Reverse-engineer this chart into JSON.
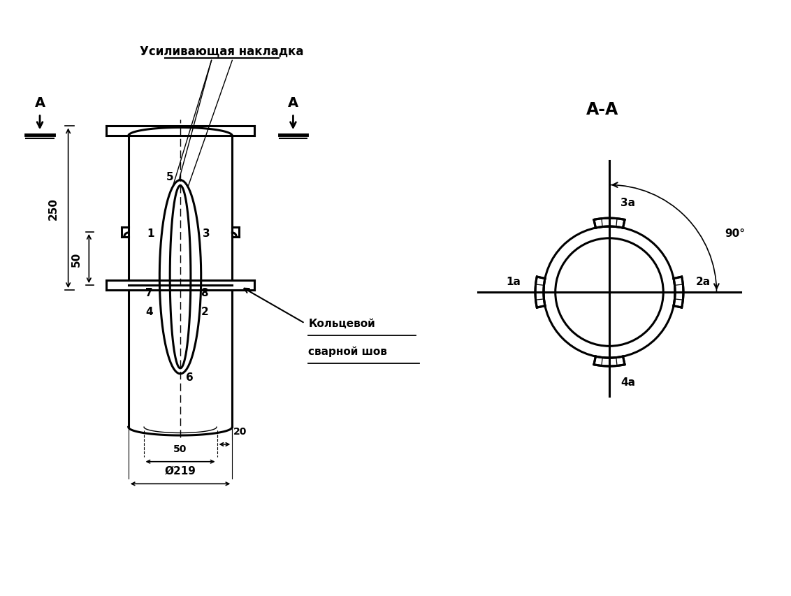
{
  "bg_color": "#ffffff",
  "line_color": "#000000",
  "fig_width": 11.32,
  "fig_height": 8.54,
  "dpi": 100,
  "text_усиливающая": "Усиливающая накладка",
  "text_кольцевой": "Кольцевой\nсварной шов",
  "text_AA": "А-А",
  "text_250": "250",
  "text_50": "50",
  "text_20": "20",
  "text_50b": "50",
  "text_219": "Ø219"
}
